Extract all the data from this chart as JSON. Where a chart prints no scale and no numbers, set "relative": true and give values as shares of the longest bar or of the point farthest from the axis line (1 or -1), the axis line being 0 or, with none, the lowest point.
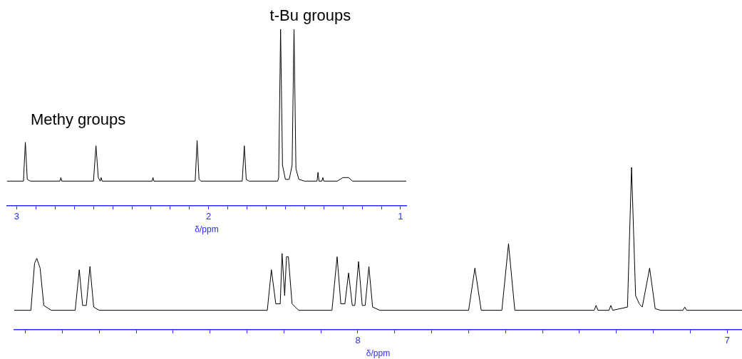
{
  "chart_data": [
    {
      "type": "line",
      "relative": true,
      "xlabel": "δ/ppm",
      "xlim": [
        3.05,
        0.97
      ],
      "xticks": [
        3,
        {
          "value": 2.9,
          "label": null
        },
        {
          "value": 2.8,
          "label": null
        },
        {
          "value": 2.7,
          "label": null
        },
        {
          "value": 2.6,
          "label": null
        },
        {
          "value": 2.5,
          "label": null
        },
        {
          "value": 2.4,
          "label": null
        },
        {
          "value": 2.3,
          "label": null
        },
        {
          "value": 2.2,
          "label": null
        },
        {
          "value": 2.1,
          "label": null
        },
        2,
        {
          "value": 1.9,
          "label": null
        },
        {
          "value": 1.8,
          "label": null
        },
        {
          "value": 1.7,
          "label": null
        },
        {
          "value": 1.6,
          "label": null
        },
        {
          "value": 1.5,
          "label": null
        },
        {
          "value": 1.4,
          "label": null
        },
        {
          "value": 1.3,
          "label": null
        },
        {
          "value": 1.2,
          "label": null
        },
        {
          "value": 1.1,
          "label": null
        },
        1
      ],
      "annotations": [
        "Methy groups",
        "t-Bu groups"
      ],
      "series": [
        {
          "color": "#000000",
          "x": [
            3.05,
            2.965,
            2.955,
            2.945,
            2.93,
            2.775,
            2.77,
            2.765,
            2.6,
            2.587,
            2.575,
            2.565,
            2.56,
            2.555,
            2.295,
            2.29,
            2.285,
            2.07,
            2.06,
            2.05,
            2.04,
            1.825,
            1.814,
            1.804,
            1.79,
            1.64,
            1.635,
            1.625,
            1.615,
            1.6,
            1.58,
            1.565,
            1.555,
            1.545,
            1.53,
            1.5,
            1.435,
            1.43,
            1.425,
            1.41,
            1.405,
            1.4,
            1.33,
            1.3,
            1.27,
            1.25,
            0.97
          ],
          "values": [
            0.14,
            0.14,
            0.36,
            0.15,
            0.14,
            0.14,
            0.16,
            0.14,
            0.14,
            0.34,
            0.16,
            0.14,
            0.16,
            0.14,
            0.14,
            0.16,
            0.14,
            0.14,
            0.37,
            0.15,
            0.14,
            0.14,
            0.34,
            0.15,
            0.14,
            0.14,
            0.16,
            1,
            0.23,
            0.15,
            0.15,
            0.23,
            1,
            0.21,
            0.15,
            0.14,
            0.14,
            0.19,
            0.14,
            0.14,
            0.16,
            0.14,
            0.14,
            0.16,
            0.16,
            0.14,
            0.14
          ]
        }
      ]
    },
    {
      "type": "line",
      "relative": true,
      "xlabel": "δ/ppm",
      "xlim": [
        8.93,
        6.96
      ],
      "xticks": [
        {
          "value": 8.9,
          "label": null
        },
        {
          "value": 8.8,
          "label": null
        },
        {
          "value": 8.7,
          "label": null
        },
        {
          "value": 8.6,
          "label": null
        },
        {
          "value": 8.5,
          "label": null
        },
        {
          "value": 8.4,
          "label": null
        },
        {
          "value": 8.3,
          "label": null
        },
        {
          "value": 8.2,
          "label": null
        },
        {
          "value": 8.1,
          "label": null
        },
        8,
        {
          "value": 7.9,
          "label": null
        },
        {
          "value": 7.8,
          "label": null
        },
        {
          "value": 7.7,
          "label": null
        },
        {
          "value": 7.6,
          "label": null
        },
        {
          "value": 7.5,
          "label": null
        },
        {
          "value": 7.4,
          "label": null
        },
        {
          "value": 7.3,
          "label": null
        },
        {
          "value": 7.2,
          "label": null
        },
        {
          "value": 7.1,
          "label": null
        },
        7
      ],
      "series": [
        {
          "color": "#000000",
          "x": [
            8.93,
            8.885,
            8.875,
            8.869,
            8.86,
            8.85,
            8.83,
            8.765,
            8.754,
            8.745,
            8.735,
            8.725,
            8.715,
            8.7,
            8.245,
            8.234,
            8.222,
            8.21,
            8.205,
            8.198,
            8.193,
            8.188,
            8.178,
            8.16,
            8.07,
            8.056,
            8.046,
            8.035,
            8.025,
            8.015,
            8.008,
            7.998,
            7.988,
            7.98,
            7.97,
            7.96,
            7.94,
            7.7,
            7.683,
            7.666,
            7.61,
            7.592,
            7.575,
            7.36,
            7.355,
            7.35,
            7.32,
            7.315,
            7.31,
            7.27,
            7.259,
            7.248,
            7.238,
            7.23,
            7.21,
            7.195,
            7.18,
            7.12,
            7.115,
            7.11,
            6.96
          ],
          "values": [
            0.12,
            0.12,
            0.41,
            0.44,
            0.38,
            0.15,
            0.12,
            0.12,
            0.37,
            0.15,
            0.15,
            0.39,
            0.14,
            0.12,
            0.12,
            0.37,
            0.16,
            0.16,
            0.47,
            0.21,
            0.45,
            0.45,
            0.16,
            0.12,
            0.12,
            0.45,
            0.16,
            0.16,
            0.35,
            0.15,
            0.15,
            0.42,
            0.15,
            0.15,
            0.39,
            0.14,
            0.12,
            0.12,
            0.38,
            0.12,
            0.12,
            0.53,
            0.12,
            0.12,
            0.15,
            0.12,
            0.12,
            0.15,
            0.12,
            0.14,
            1,
            0.21,
            0.16,
            0.14,
            0.38,
            0.13,
            0.12,
            0.12,
            0.14,
            0.12,
            0.12
          ]
        }
      ]
    }
  ]
}
